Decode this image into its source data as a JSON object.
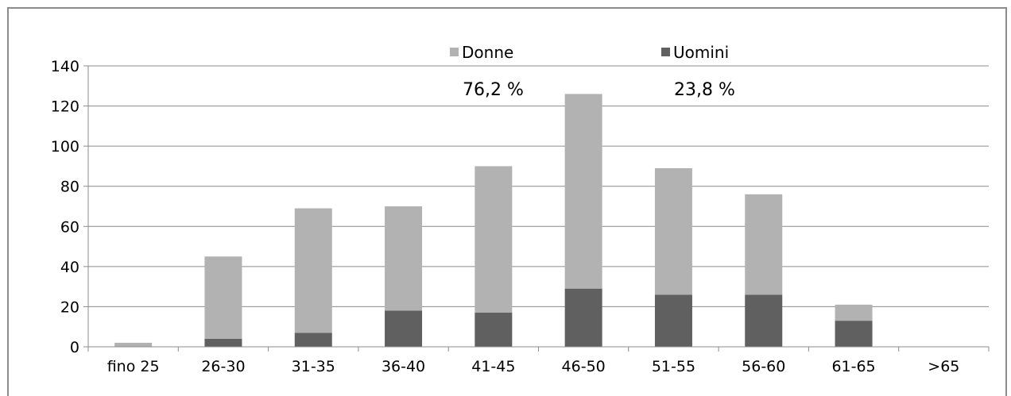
{
  "chart_data": {
    "type": "bar",
    "stacked": true,
    "categories": [
      "fino 25",
      "26-30",
      "31-35",
      "36-40",
      "41-45",
      "46-50",
      "51-55",
      "56-60",
      "61-65",
      ">65"
    ],
    "series": [
      {
        "name": "Uomini",
        "color": "#606060",
        "values": [
          0,
          4,
          7,
          18,
          17,
          29,
          26,
          26,
          13,
          0
        ]
      },
      {
        "name": "Donne",
        "color": "#b2b2b2",
        "values": [
          2,
          41,
          62,
          52,
          73,
          97,
          63,
          50,
          8,
          0
        ]
      }
    ],
    "ylim": [
      0,
      140
    ],
    "yticks": [
      "0",
      "20",
      "40",
      "60",
      "80",
      "100",
      "120",
      "140"
    ],
    "grid": true,
    "legend": [
      {
        "label": "Donne",
        "color": "#b2b2b2",
        "share": "76,2 %"
      },
      {
        "label": "Uomini",
        "color": "#606060",
        "share": "23,8 %"
      }
    ],
    "legend_position": "top-center"
  }
}
